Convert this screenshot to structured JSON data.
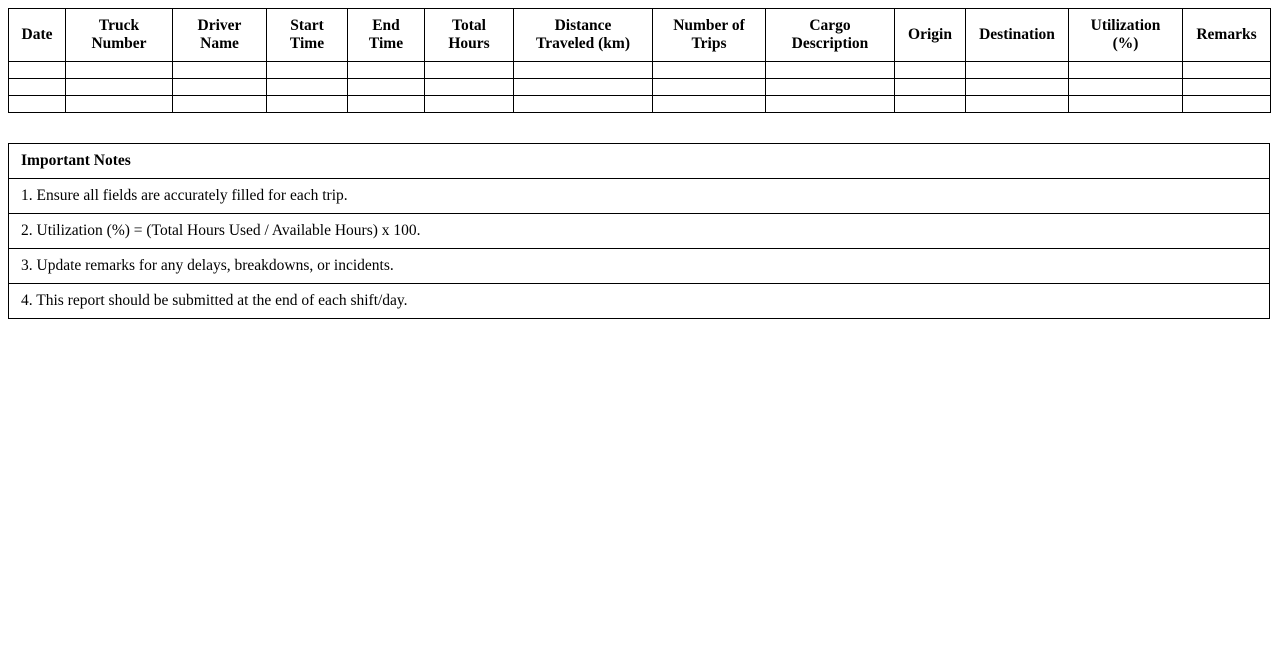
{
  "log_table": {
    "headers": [
      "Date",
      "Truck\nNumber",
      "Driver\nName",
      "Start\nTime",
      "End\nTime",
      "Total\nHours",
      "Distance\nTraveled (km)",
      "Number of\nTrips",
      "Cargo\nDescription",
      "Origin",
      "Destination",
      "Utilization\n(%)",
      "Remarks"
    ],
    "empty_rows": 3
  },
  "notes": {
    "title": "Important Notes",
    "items": [
      "1. Ensure all fields are accurately filled for each trip.",
      "2. Utilization (%) = (Total Hours Used / Available Hours) x 100.",
      "3. Update remarks for any delays, breakdowns, or incidents.",
      "4. This report should be submitted at the end of each shift/day."
    ]
  }
}
